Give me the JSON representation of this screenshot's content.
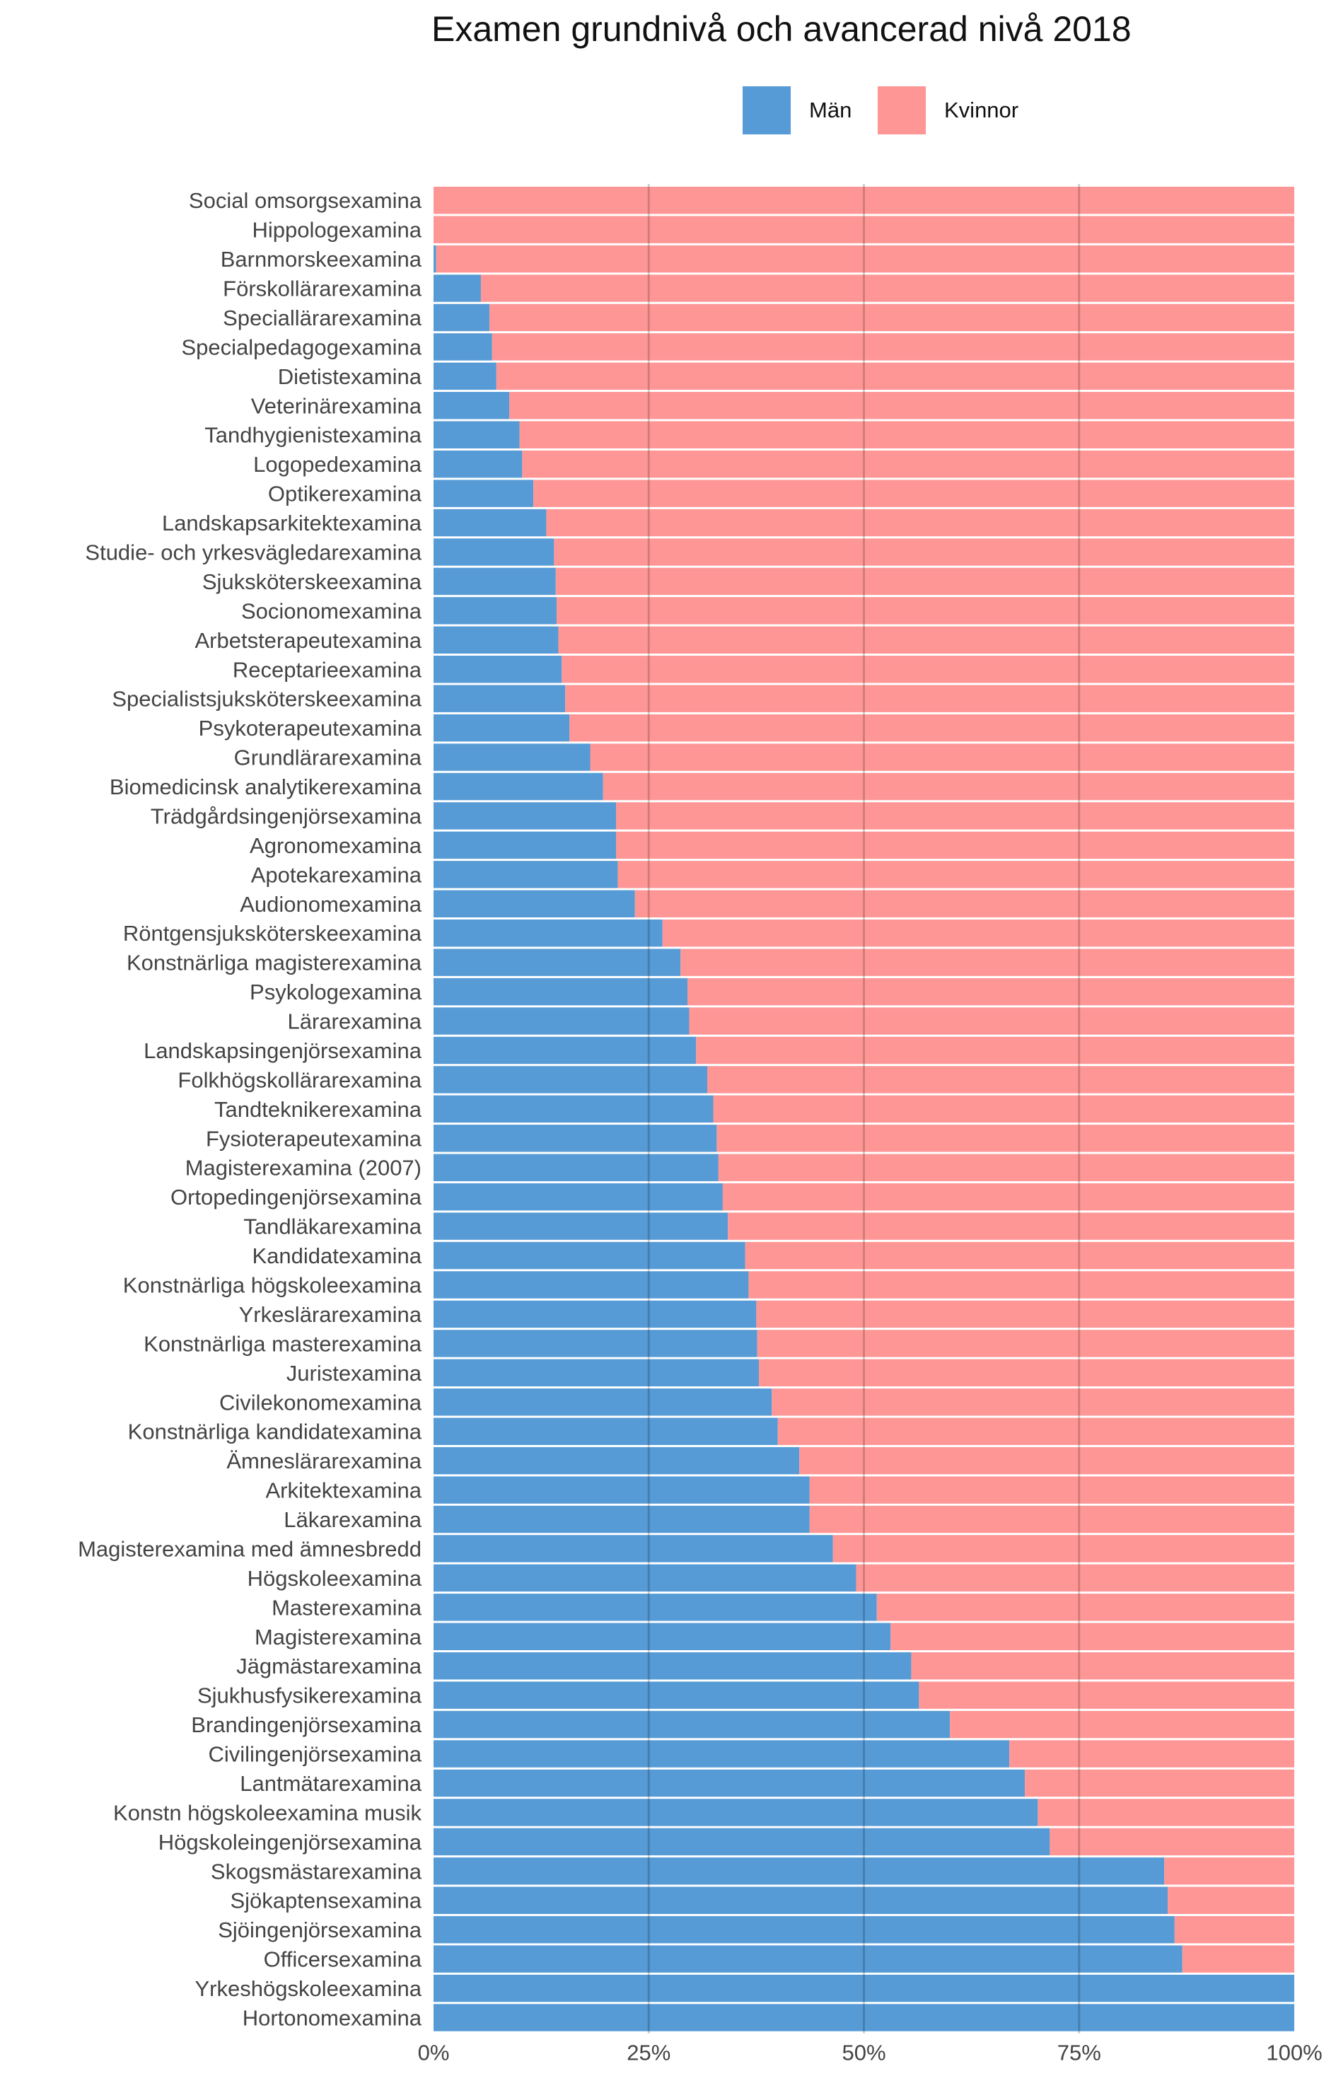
{
  "chart_data": {
    "type": "bar",
    "orientation": "horizontal",
    "stacked": true,
    "title": "Examen grundnivå och avancerad nivå 2018",
    "xlabel": "",
    "ylabel": "",
    "xlim": [
      0,
      1
    ],
    "x_tick_labels": [
      "0%",
      "25%",
      "50%",
      "75%",
      "100%"
    ],
    "x_tick_values": [
      0,
      0.25,
      0.5,
      0.75,
      1
    ],
    "grid": true,
    "legend": {
      "position": "top",
      "entries": [
        "Män",
        "Kvinnor"
      ]
    },
    "series": [
      {
        "name": "Män",
        "color": "#569bd6"
      },
      {
        "name": "Kvinnor",
        "color": "#ff9696"
      }
    ],
    "categories": [
      "Social omsorgsexamina",
      "Hippologexamina",
      "Barnmorskeexamina",
      "Förskollärarexamina",
      "Speciallärarexamina",
      "Specialpedagogexamina",
      "Dietistexamina",
      "Veterinärexamina",
      "Tandhygienistexamina",
      "Logopedexamina",
      "Optikerexamina",
      "Landskapsarkitektexamina",
      "Studie- och yrkesvägledarexamina",
      "Sjuksköterskeexamina",
      "Socionomexamina",
      "Arbetsterapeutexamina",
      "Receptarieexamina",
      "Specialistsjuksköterskeexamina",
      "Psykoterapeutexamina",
      "Grundlärarexamina",
      "Biomedicinsk analytikerexamina",
      "Trädgårdsingenjörsexamina",
      "Agronomexamina",
      "Apotekarexamina",
      "Audionomexamina",
      "Röntgensjuksköterskeexamina",
      "Konstnärliga magisterexamina",
      "Psykologexamina",
      "Lärarexamina",
      "Landskapsingenjörsexamina",
      "Folkhögskollärarexamina",
      "Tandteknikerexamina",
      "Fysioterapeutexamina",
      "Magisterexamina (2007)",
      "Ortopedingenjörsexamina",
      "Tandläkarexamina",
      "Kandidatexamina",
      "Konstnärliga högskoleexamina",
      "Yrkeslärarexamina",
      "Konstnärliga masterexamina",
      "Juristexamina",
      "Civilekonomexamina",
      "Konstnärliga kandidatexamina",
      "Ämneslärarexamina",
      "Arkitektexamina",
      "Läkarexamina",
      "Magisterexamina med ämnesbredd",
      "Högskoleexamina",
      "Masterexamina",
      "Magisterexamina",
      "Jägmästarexamina",
      "Sjukhusfysikerexamina",
      "Brandingenjörsexamina",
      "Civilingenjörsexamina",
      "Lantmätarexamina",
      "Konstn högskoleexamina musik",
      "Högskoleingenjörsexamina",
      "Skogsmästarexamina",
      "Sjökaptensexamina",
      "Sjöingenjörsexamina",
      "Officersexamina",
      "Yrkeshögskoleexamina",
      "Hortonomexamina"
    ],
    "men_share": [
      0.0,
      0.0,
      0.003,
      0.055,
      0.065,
      0.068,
      0.073,
      0.088,
      0.1,
      0.103,
      0.116,
      0.131,
      0.14,
      0.142,
      0.143,
      0.145,
      0.149,
      0.153,
      0.158,
      0.182,
      0.197,
      0.212,
      0.212,
      0.214,
      0.234,
      0.266,
      0.287,
      0.295,
      0.297,
      0.305,
      0.318,
      0.325,
      0.329,
      0.331,
      0.336,
      0.342,
      0.362,
      0.366,
      0.375,
      0.376,
      0.378,
      0.393,
      0.4,
      0.425,
      0.437,
      0.437,
      0.464,
      0.491,
      0.515,
      0.531,
      0.555,
      0.564,
      0.6,
      0.669,
      0.687,
      0.702,
      0.716,
      0.849,
      0.853,
      0.861,
      0.87,
      1.0,
      1.0
    ]
  }
}
